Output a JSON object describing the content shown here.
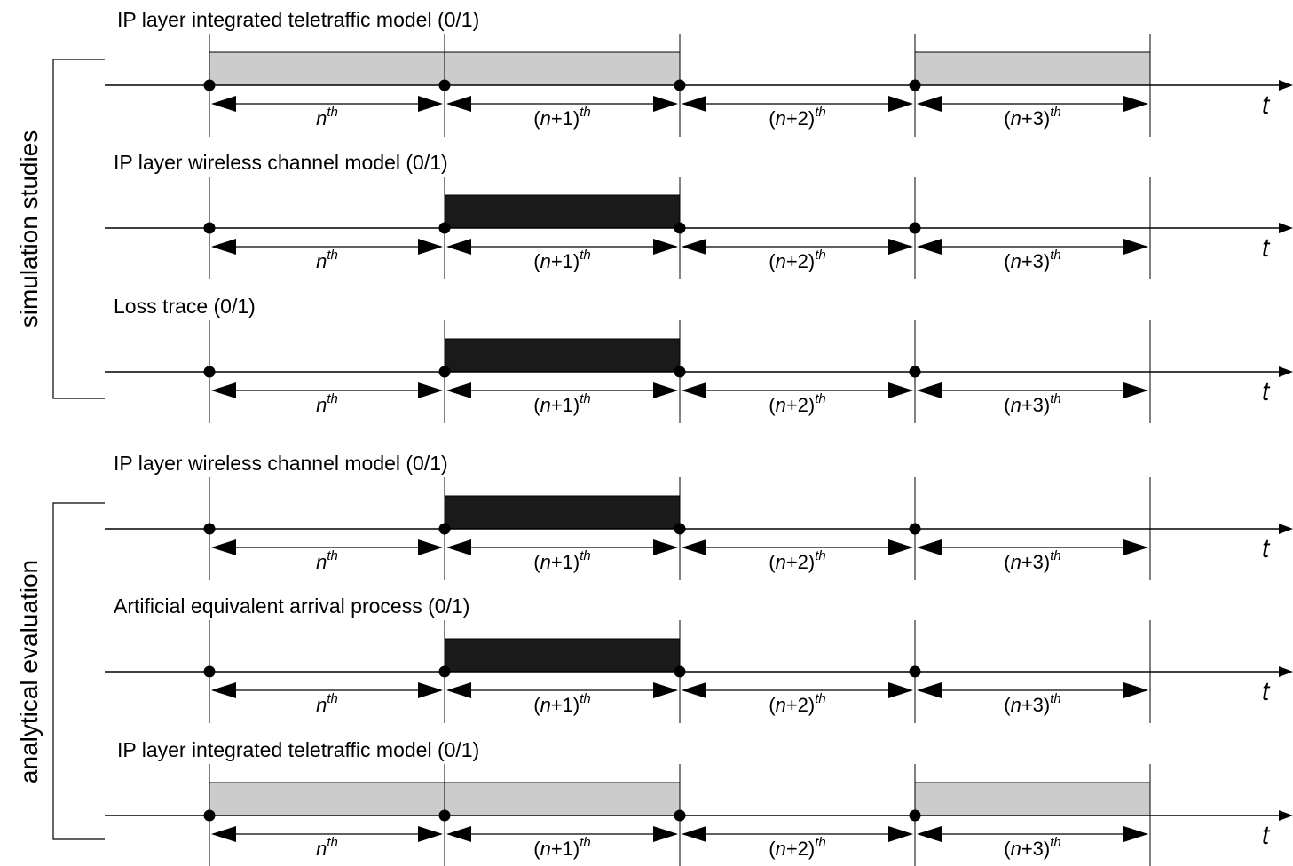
{
  "side_groups": [
    {
      "label": "simulation studies"
    },
    {
      "label": "analytical evaluation"
    }
  ],
  "time_axis_label": "t",
  "interval_labels": [
    {
      "base": "n",
      "sup": "th",
      "pre": "",
      "post": ""
    },
    {
      "base": "n",
      "sup": "th",
      "pre": "(",
      "post": "+1)"
    },
    {
      "base": "n",
      "sup": "th",
      "pre": "(",
      "post": "+2)"
    },
    {
      "base": "n",
      "sup": "th",
      "pre": "(",
      "post": "+3)"
    }
  ],
  "timelines": [
    {
      "title": "IP layer integrated teletraffic model (0/1)",
      "fill": "gray",
      "states": [
        1,
        1,
        0,
        1
      ]
    },
    {
      "title": "IP layer wireless channel model (0/1)",
      "fill": "black",
      "states": [
        0,
        1,
        0,
        0
      ]
    },
    {
      "title": "Loss trace (0/1)",
      "fill": "black",
      "states": [
        0,
        1,
        0,
        0
      ]
    },
    {
      "title": "IP layer wireless channel model (0/1)",
      "fill": "black",
      "states": [
        0,
        1,
        0,
        0
      ]
    },
    {
      "title": "Artificial equivalent arrival process (0/1)",
      "fill": "black",
      "states": [
        0,
        1,
        0,
        0
      ]
    },
    {
      "title": "IP layer integrated teletraffic model (0/1)",
      "fill": "gray",
      "states": [
        1,
        1,
        0,
        1
      ]
    }
  ],
  "colors": {
    "gray": "#cccccc",
    "black": "#1a1a1a",
    "line": "#000000"
  }
}
